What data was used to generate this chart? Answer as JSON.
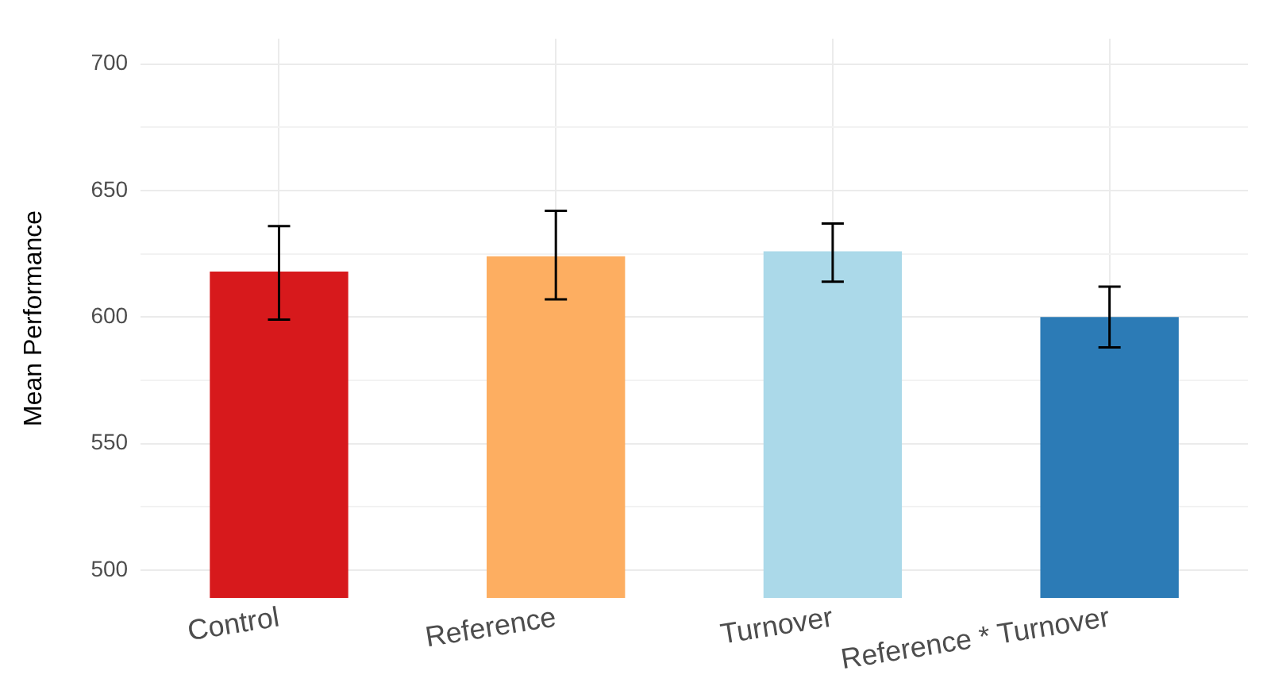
{
  "chart_data": {
    "type": "bar",
    "ylabel": "Mean Performance",
    "categories": [
      "Control",
      "Reference",
      "Turnover",
      "Reference * Turnover"
    ],
    "values": [
      618,
      624,
      626,
      600
    ],
    "colors": [
      "#d7191c",
      "#fdae61",
      "#abd9e9",
      "#2c7bb6"
    ],
    "errors": [
      [
        599,
        636
      ],
      [
        607,
        642
      ],
      [
        614,
        637
      ],
      [
        588,
        612
      ]
    ],
    "ylim": [
      489,
      710
    ],
    "yticks": [
      500,
      {
        "value": 525,
        "label": null
      },
      550,
      {
        "value": 575,
        "label": null
      },
      600,
      {
        "value": 625,
        "label": null
      },
      650,
      {
        "value": 675,
        "label": null
      },
      700
    ],
    "grid": true,
    "legend": false
  }
}
